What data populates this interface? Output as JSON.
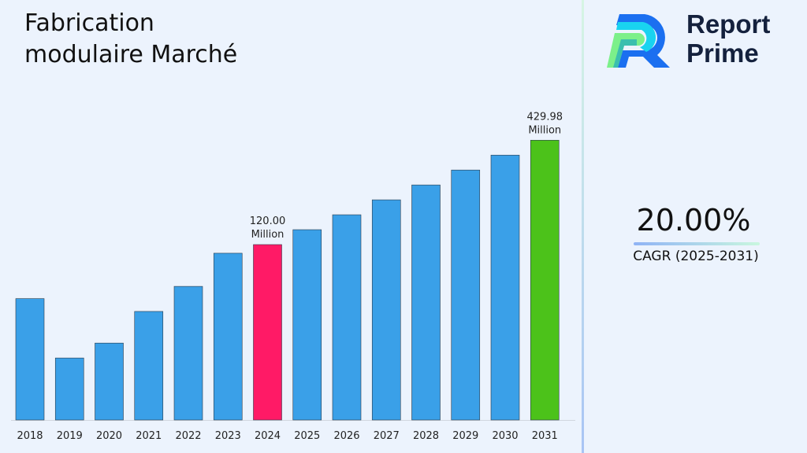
{
  "title_line1": "Fabrication",
  "title_line2": "modulaire Marché",
  "logo": {
    "line1": "Report",
    "line2": "Prime"
  },
  "cagr": {
    "value": "20.00%",
    "label": "CAGR (2025-2031)"
  },
  "chart_data": {
    "type": "bar",
    "title": "Fabrication modulaire Marché",
    "categories": [
      "2018",
      "2019",
      "2020",
      "2021",
      "2022",
      "2023",
      "2024",
      "2025",
      "2026",
      "2027",
      "2028",
      "2029",
      "2030",
      "2031"
    ],
    "values": [
      62,
      30,
      36,
      53,
      72,
      108,
      120.0,
      144.0,
      172.8,
      207.4,
      248.8,
      298.6,
      358.3,
      429.98
    ],
    "unit": "Million",
    "data_labels": {
      "6": [
        "120.00",
        "Million"
      ],
      "13": [
        "429.98",
        "Million"
      ]
    },
    "colors": {
      "default": "#3aa0e8",
      "2024": "#ff1a66",
      "2031": "#4cc21a"
    },
    "grid": false,
    "legend": "none"
  }
}
